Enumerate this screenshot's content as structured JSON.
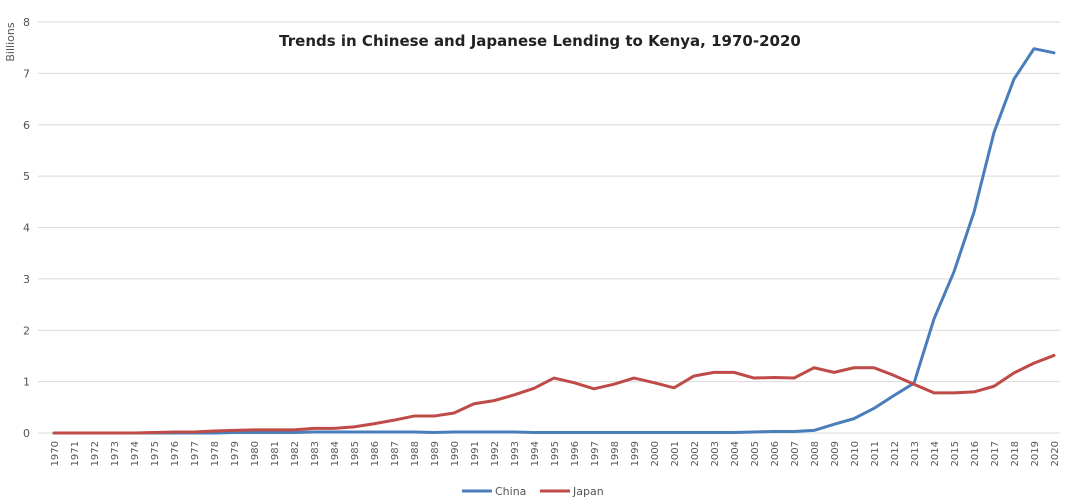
{
  "chart_data": {
    "type": "line",
    "title": "Trends in Chinese and Japanese Lending to Kenya, 1970-2020",
    "xlabel": "",
    "ylabel": "Billions",
    "ylim": [
      0,
      8
    ],
    "yticks": [
      "0",
      "1",
      "2",
      "3",
      "4",
      "5",
      "6",
      "7",
      "8"
    ],
    "grid": true,
    "legend_position": "bottom",
    "categories": [
      "1970",
      "1971",
      "1972",
      "1973",
      "1974",
      "1975",
      "1976",
      "1977",
      "1978",
      "1979",
      "1980",
      "1981",
      "1982",
      "1983",
      "1984",
      "1985",
      "1986",
      "1987",
      "1988",
      "1989",
      "1990",
      "1991",
      "1992",
      "1993",
      "1994",
      "1995",
      "1996",
      "1997",
      "1998",
      "1999",
      "2000",
      "2001",
      "2002",
      "2003",
      "2004",
      "2005",
      "2006",
      "2007",
      "2008",
      "2009",
      "2010",
      "2011",
      "2012",
      "2013",
      "2014",
      "2015",
      "2016",
      "2017",
      "2018",
      "2019",
      "2020"
    ],
    "series": [
      {
        "name": "China",
        "color": "#4a7ebb",
        "values": [
          0,
          0,
          0,
          0,
          0,
          0,
          0,
          0,
          0,
          0.01,
          0.01,
          0.01,
          0.01,
          0.02,
          0.02,
          0.02,
          0.02,
          0.02,
          0.02,
          0.01,
          0.02,
          0.02,
          0.02,
          0.02,
          0.01,
          0.01,
          0.01,
          0.01,
          0.01,
          0.01,
          0.01,
          0.01,
          0.01,
          0.01,
          0.01,
          0.02,
          0.03,
          0.03,
          0.05,
          0.17,
          0.28,
          0.48,
          0.73,
          0.97,
          2.22,
          3.14,
          4.3,
          5.85,
          6.89,
          7.48,
          7.4
        ]
      },
      {
        "name": "Japan",
        "color": "#be4b48",
        "values": [
          0,
          0,
          0,
          0,
          0,
          0.01,
          0.02,
          0.02,
          0.04,
          0.05,
          0.06,
          0.06,
          0.06,
          0.09,
          0.09,
          0.12,
          0.18,
          0.25,
          0.33,
          0.33,
          0.39,
          0.57,
          0.63,
          0.74,
          0.87,
          1.07,
          0.98,
          0.86,
          0.95,
          1.07,
          0.98,
          0.88,
          1.11,
          1.18,
          1.18,
          1.07,
          1.08,
          1.07,
          1.27,
          1.18,
          1.27,
          1.27,
          1.12,
          0.95,
          0.78,
          0.78,
          0.8,
          0.91,
          1.17,
          1.36,
          1.51
        ]
      }
    ]
  }
}
